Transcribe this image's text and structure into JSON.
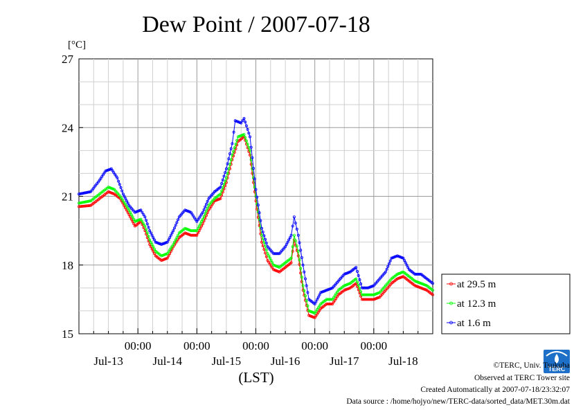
{
  "chart_data": {
    "type": "line",
    "title": "Dew Point / 2007-07-18",
    "ylabel_unit": "[°C]",
    "xlabel": "(LST)",
    "ylim": [
      15,
      27
    ],
    "yticks": [
      15,
      18,
      21,
      24,
      27
    ],
    "x_time_labels": [
      "00:00",
      "00:00",
      "00:00",
      "00:00",
      "00:00"
    ],
    "x_date_labels": [
      "Jul-13",
      "Jul-14",
      "Jul-15",
      "Jul-16",
      "Jul-17",
      "Jul-18"
    ],
    "x_range_days": [
      12.0,
      18.0
    ],
    "grid": true,
    "legend_position": "right",
    "series": [
      {
        "name": "at 29.5 m",
        "color": "#ff0000",
        "points": [
          [
            12.0,
            20.55
          ],
          [
            12.2,
            20.6
          ],
          [
            12.35,
            20.9
          ],
          [
            12.5,
            21.2
          ],
          [
            12.6,
            21.1
          ],
          [
            12.7,
            20.9
          ],
          [
            12.85,
            20.2
          ],
          [
            12.95,
            19.7
          ],
          [
            13.05,
            19.9
          ],
          [
            13.12,
            19.5
          ],
          [
            13.2,
            18.9
          ],
          [
            13.3,
            18.4
          ],
          [
            13.4,
            18.2
          ],
          [
            13.5,
            18.3
          ],
          [
            13.6,
            18.8
          ],
          [
            13.7,
            19.2
          ],
          [
            13.8,
            19.4
          ],
          [
            13.9,
            19.3
          ],
          [
            14.0,
            19.3
          ],
          [
            14.1,
            19.8
          ],
          [
            14.2,
            20.4
          ],
          [
            14.3,
            20.8
          ],
          [
            14.4,
            20.9
          ],
          [
            14.5,
            21.6
          ],
          [
            14.6,
            22.6
          ],
          [
            14.7,
            23.4
          ],
          [
            14.8,
            23.6
          ],
          [
            14.9,
            22.8
          ],
          [
            15.0,
            20.8
          ],
          [
            15.1,
            19.0
          ],
          [
            15.2,
            18.2
          ],
          [
            15.3,
            17.8
          ],
          [
            15.4,
            17.7
          ],
          [
            15.5,
            17.9
          ],
          [
            15.6,
            18.1
          ],
          [
            15.65,
            19.1
          ],
          [
            15.72,
            18.4
          ],
          [
            15.8,
            16.9
          ],
          [
            15.9,
            15.8
          ],
          [
            16.0,
            15.7
          ],
          [
            16.1,
            16.1
          ],
          [
            16.2,
            16.3
          ],
          [
            16.3,
            16.3
          ],
          [
            16.4,
            16.7
          ],
          [
            16.5,
            16.9
          ],
          [
            16.6,
            17.0
          ],
          [
            16.7,
            17.2
          ],
          [
            16.8,
            16.5
          ],
          [
            16.9,
            16.5
          ],
          [
            17.0,
            16.5
          ],
          [
            17.1,
            16.6
          ],
          [
            17.2,
            16.9
          ],
          [
            17.3,
            17.2
          ],
          [
            17.4,
            17.4
          ],
          [
            17.5,
            17.5
          ],
          [
            17.6,
            17.3
          ],
          [
            17.7,
            17.1
          ],
          [
            17.8,
            17.0
          ],
          [
            17.9,
            16.9
          ],
          [
            18.0,
            16.7
          ]
        ]
      },
      {
        "name": "at 12.3 m",
        "color": "#00ff00",
        "points": [
          [
            12.0,
            20.7
          ],
          [
            12.2,
            20.8
          ],
          [
            12.35,
            21.1
          ],
          [
            12.5,
            21.4
          ],
          [
            12.6,
            21.3
          ],
          [
            12.7,
            21.0
          ],
          [
            12.85,
            20.4
          ],
          [
            12.95,
            19.9
          ],
          [
            13.05,
            20.0
          ],
          [
            13.12,
            19.7
          ],
          [
            13.2,
            19.1
          ],
          [
            13.3,
            18.6
          ],
          [
            13.4,
            18.4
          ],
          [
            13.5,
            18.5
          ],
          [
            13.6,
            18.9
          ],
          [
            13.7,
            19.4
          ],
          [
            13.8,
            19.6
          ],
          [
            13.9,
            19.5
          ],
          [
            14.0,
            19.5
          ],
          [
            14.1,
            20.0
          ],
          [
            14.2,
            20.6
          ],
          [
            14.3,
            20.9
          ],
          [
            14.4,
            21.1
          ],
          [
            14.5,
            21.8
          ],
          [
            14.6,
            22.8
          ],
          [
            14.7,
            23.6
          ],
          [
            14.8,
            23.7
          ],
          [
            14.9,
            23.0
          ],
          [
            15.0,
            21.0
          ],
          [
            15.1,
            19.3
          ],
          [
            15.2,
            18.5
          ],
          [
            15.3,
            18.0
          ],
          [
            15.4,
            17.9
          ],
          [
            15.5,
            18.1
          ],
          [
            15.6,
            18.3
          ],
          [
            15.65,
            19.3
          ],
          [
            15.72,
            18.6
          ],
          [
            15.8,
            17.1
          ],
          [
            15.9,
            16.0
          ],
          [
            16.0,
            15.9
          ],
          [
            16.1,
            16.3
          ],
          [
            16.2,
            16.5
          ],
          [
            16.3,
            16.5
          ],
          [
            16.4,
            16.9
          ],
          [
            16.5,
            17.1
          ],
          [
            16.6,
            17.2
          ],
          [
            16.7,
            17.4
          ],
          [
            16.8,
            16.7
          ],
          [
            16.9,
            16.7
          ],
          [
            17.0,
            16.7
          ],
          [
            17.1,
            16.8
          ],
          [
            17.2,
            17.1
          ],
          [
            17.3,
            17.4
          ],
          [
            17.4,
            17.6
          ],
          [
            17.5,
            17.7
          ],
          [
            17.6,
            17.5
          ],
          [
            17.7,
            17.3
          ],
          [
            17.8,
            17.2
          ],
          [
            17.9,
            17.1
          ],
          [
            18.0,
            16.9
          ]
        ]
      },
      {
        "name": "at 1.6 m",
        "color": "#0000ff",
        "points": [
          [
            12.0,
            21.1
          ],
          [
            12.2,
            21.2
          ],
          [
            12.35,
            21.7
          ],
          [
            12.45,
            22.1
          ],
          [
            12.55,
            22.2
          ],
          [
            12.65,
            21.8
          ],
          [
            12.75,
            21.1
          ],
          [
            12.85,
            20.6
          ],
          [
            12.95,
            20.3
          ],
          [
            13.05,
            20.4
          ],
          [
            13.12,
            20.1
          ],
          [
            13.2,
            19.5
          ],
          [
            13.3,
            19.0
          ],
          [
            13.4,
            18.9
          ],
          [
            13.5,
            19.0
          ],
          [
            13.6,
            19.5
          ],
          [
            13.7,
            20.1
          ],
          [
            13.8,
            20.4
          ],
          [
            13.9,
            20.3
          ],
          [
            14.0,
            19.9
          ],
          [
            14.1,
            20.3
          ],
          [
            14.2,
            20.9
          ],
          [
            14.3,
            21.2
          ],
          [
            14.4,
            21.4
          ],
          [
            14.5,
            22.2
          ],
          [
            14.6,
            23.3
          ],
          [
            14.65,
            24.3
          ],
          [
            14.75,
            24.2
          ],
          [
            14.8,
            24.4
          ],
          [
            14.9,
            23.6
          ],
          [
            15.0,
            21.3
          ],
          [
            15.1,
            19.6
          ],
          [
            15.2,
            18.8
          ],
          [
            15.3,
            18.5
          ],
          [
            15.4,
            18.5
          ],
          [
            15.5,
            18.8
          ],
          [
            15.6,
            19.3
          ],
          [
            15.65,
            20.1
          ],
          [
            15.72,
            19.3
          ],
          [
            15.8,
            18.0
          ],
          [
            15.9,
            16.5
          ],
          [
            16.0,
            16.3
          ],
          [
            16.1,
            16.8
          ],
          [
            16.2,
            16.9
          ],
          [
            16.3,
            17.0
          ],
          [
            16.4,
            17.3
          ],
          [
            16.5,
            17.6
          ],
          [
            16.6,
            17.7
          ],
          [
            16.7,
            17.9
          ],
          [
            16.8,
            17.0
          ],
          [
            16.9,
            17.0
          ],
          [
            17.0,
            17.1
          ],
          [
            17.1,
            17.4
          ],
          [
            17.2,
            17.7
          ],
          [
            17.3,
            18.3
          ],
          [
            17.4,
            18.4
          ],
          [
            17.5,
            18.3
          ],
          [
            17.6,
            17.8
          ],
          [
            17.7,
            17.6
          ],
          [
            17.8,
            17.6
          ],
          [
            17.9,
            17.4
          ],
          [
            18.0,
            17.2
          ]
        ]
      }
    ]
  },
  "credits": {
    "copyright": "©TERC, Univ. Tsukuba",
    "observed": "Observed at TERC Tower site",
    "created": "Created Automatically at 2007-07-18/23:32:07",
    "source": "Data source : /home/hojyo/new/TERC-data/sorted_data/MET.30m.dat",
    "logo_text": "TERC"
  }
}
